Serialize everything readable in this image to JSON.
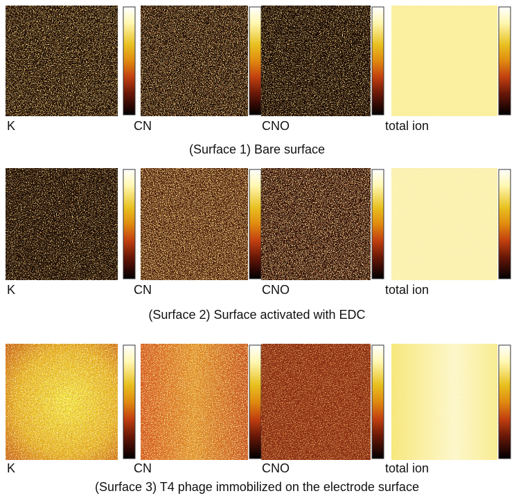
{
  "rows": [
    {
      "panels": [
        "K",
        "CN",
        "CNO",
        "total ion"
      ],
      "caption": "(Surface 1) Bare surface"
    },
    {
      "panels": [
        "K",
        "CN",
        "CNO",
        "total ion"
      ],
      "caption": "(Surface 2) Surface activated with EDC"
    },
    {
      "panels": [
        "K",
        "CN",
        "CNO",
        "total ion"
      ],
      "caption": "(Surface 3) T4 phage immobilized on the electrode surface"
    }
  ]
}
